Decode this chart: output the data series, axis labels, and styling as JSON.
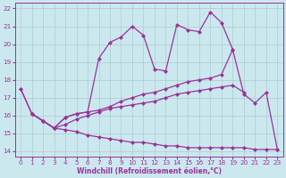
{
  "bg_color": "#cce8ef",
  "line_color": "#993399",
  "grid_color": "#aaccd0",
  "xlabel": "Windchill (Refroidissement éolien,°C)",
  "xlabel_color": "#993399",
  "ylim": [
    13.7,
    22.3
  ],
  "xlim": [
    -0.5,
    23.5
  ],
  "yticks": [
    14,
    15,
    16,
    17,
    18,
    19,
    20,
    21,
    22
  ],
  "xticks": [
    0,
    1,
    2,
    3,
    4,
    5,
    6,
    7,
    8,
    9,
    10,
    11,
    12,
    13,
    14,
    15,
    16,
    17,
    18,
    19,
    20,
    21,
    22,
    23
  ],
  "lines": [
    {
      "x": [
        0,
        1,
        2,
        3,
        4,
        5,
        6,
        7,
        8,
        9,
        10,
        11,
        12,
        13,
        14,
        15,
        16,
        17,
        18,
        19
      ],
      "y": [
        17.5,
        16.1,
        15.7,
        15.3,
        15.9,
        16.1,
        16.2,
        19.2,
        20.1,
        20.4,
        21.0,
        20.5,
        18.6,
        18.5,
        21.1,
        20.8,
        20.7,
        21.8,
        21.2,
        19.7
      ]
    },
    {
      "x": [
        0,
        1,
        2,
        3,
        4,
        5,
        6,
        7,
        8,
        9,
        10,
        11,
        12,
        13,
        14,
        15,
        16,
        17,
        18,
        19,
        20,
        21,
        22,
        23
      ],
      "y": [
        17.5,
        16.1,
        15.7,
        15.3,
        15.9,
        16.1,
        16.2,
        16.3,
        16.5,
        16.8,
        17.0,
        17.2,
        17.3,
        17.5,
        17.7,
        17.9,
        18.0,
        18.1,
        18.3,
        19.7,
        17.2,
        16.7,
        17.3,
        14.1
      ]
    },
    {
      "x": [
        1,
        2,
        3,
        4,
        5,
        6,
        7,
        8,
        9,
        10,
        11,
        12,
        13,
        14,
        15,
        16,
        17,
        18,
        19,
        20
      ],
      "y": [
        16.1,
        15.7,
        15.3,
        15.5,
        15.8,
        16.0,
        16.2,
        16.4,
        16.5,
        16.6,
        16.7,
        16.8,
        17.0,
        17.2,
        17.3,
        17.4,
        17.5,
        17.6,
        17.7,
        17.3
      ]
    },
    {
      "x": [
        1,
        2,
        3,
        4,
        5,
        6,
        7,
        8,
        9,
        10,
        11,
        12,
        13,
        14,
        15,
        16,
        17,
        18,
        19,
        20,
        21,
        22,
        23
      ],
      "y": [
        16.1,
        15.7,
        15.3,
        15.2,
        15.1,
        14.9,
        14.8,
        14.7,
        14.6,
        14.5,
        14.5,
        14.4,
        14.3,
        14.3,
        14.2,
        14.2,
        14.2,
        14.2,
        14.2,
        14.2,
        14.1,
        14.1,
        14.1
      ]
    }
  ],
  "marker_size": 2.5,
  "line_width": 0.9
}
